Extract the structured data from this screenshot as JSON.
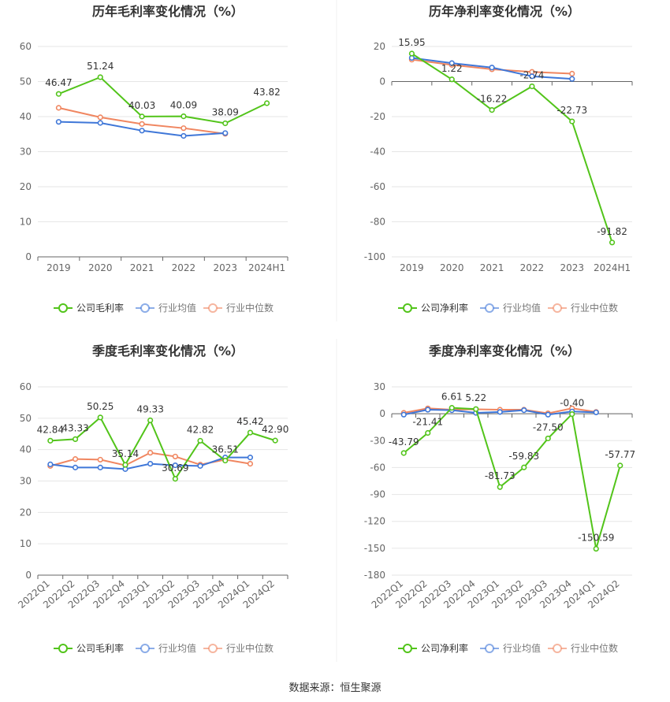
{
  "source_note": "数据来源：恒生聚源",
  "colors": {
    "company": "#52c41a",
    "avg": "#3f77d8",
    "median": "#f08660",
    "grid": "#e6e6e6",
    "axis": "#666666",
    "label": "#333333",
    "title": "#333333"
  },
  "chart_data": [
    {
      "type": "line",
      "title": "历年毛利率变化情况（%）",
      "categories": [
        "2019",
        "2020",
        "2021",
        "2022",
        "2023",
        "2024H1"
      ],
      "ylim": [
        0,
        60
      ],
      "yticks": [
        0,
        10,
        20,
        30,
        40,
        50,
        60
      ],
      "grid": true,
      "legend_position": "bottom",
      "series": [
        {
          "name": "公司毛利率",
          "values": [
            46.47,
            51.24,
            40.03,
            40.09,
            38.09,
            43.82
          ],
          "labels": [
            "46.47",
            "51.24",
            "40.03",
            "40.09",
            "38.09",
            "43.82"
          ]
        },
        {
          "name": "行业均值",
          "values": [
            38.5,
            38.2,
            36.0,
            34.5,
            35.3,
            null
          ]
        },
        {
          "name": "行业中位数",
          "values": [
            42.5,
            39.8,
            37.9,
            36.7,
            35.1,
            null
          ]
        }
      ]
    },
    {
      "type": "line",
      "title": "历年净利率变化情况（%）",
      "categories": [
        "2019",
        "2020",
        "2021",
        "2022",
        "2023",
        "2024H1"
      ],
      "ylim": [
        -100,
        20
      ],
      "yticks": [
        -100,
        -80,
        -60,
        -40,
        -20,
        0,
        20
      ],
      "grid": true,
      "legend_position": "bottom",
      "series": [
        {
          "name": "公司净利率",
          "values": [
            15.95,
            1.22,
            -16.22,
            -2.74,
            -22.73,
            -91.82
          ],
          "labels": [
            "15.95",
            "1.22",
            "-16.22",
            "-2.74",
            "-22.73",
            "-91.82"
          ]
        },
        {
          "name": "行业均值",
          "values": [
            13.5,
            10.5,
            8.0,
            3.0,
            1.5,
            null
          ]
        },
        {
          "name": "行业中位数",
          "values": [
            12.5,
            9.5,
            7.0,
            5.5,
            4.5,
            null
          ]
        }
      ]
    },
    {
      "type": "line",
      "title": "季度毛利率变化情况（%）",
      "categories": [
        "2022Q1",
        "2022Q2",
        "2022Q3",
        "2022Q4",
        "2023Q1",
        "2023Q2",
        "2023Q3",
        "2023Q4",
        "2024Q1",
        "2024Q2"
      ],
      "ylim": [
        0,
        60
      ],
      "yticks": [
        0,
        10,
        20,
        30,
        40,
        50,
        60
      ],
      "grid": true,
      "legend_position": "bottom",
      "series": [
        {
          "name": "公司毛利率",
          "values": [
            42.84,
            43.33,
            50.25,
            35.14,
            49.33,
            30.69,
            42.82,
            36.51,
            45.42,
            42.9
          ],
          "labels": [
            "42.84",
            "43.33",
            "50.25",
            "35.14",
            "49.33",
            "30.69",
            "42.82",
            "36.51",
            "45.42",
            "42.90"
          ]
        },
        {
          "name": "行业均值",
          "values": [
            35.3,
            34.3,
            34.3,
            33.8,
            35.5,
            35.0,
            34.8,
            37.5,
            37.5,
            null
          ]
        },
        {
          "name": "行业中位数",
          "values": [
            34.8,
            37.0,
            36.8,
            35.0,
            39.0,
            37.8,
            35.2,
            36.8,
            35.5,
            null
          ]
        }
      ]
    },
    {
      "type": "line",
      "title": "季度净利率变化情况（%）",
      "categories": [
        "2022Q1",
        "2022Q2",
        "2022Q3",
        "2022Q4",
        "2023Q1",
        "2023Q2",
        "2023Q3",
        "2023Q4",
        "2024Q1",
        "2024Q2"
      ],
      "ylim": [
        -180,
        30
      ],
      "yticks": [
        -180,
        -150,
        -120,
        -90,
        -60,
        -30,
        0,
        30
      ],
      "grid": true,
      "legend_position": "bottom",
      "series": [
        {
          "name": "公司净利率",
          "values": [
            -43.79,
            -21.41,
            6.61,
            5.22,
            -81.73,
            -59.83,
            -27.5,
            -0.4,
            -150.59,
            -57.77
          ],
          "labels": [
            "-43.79",
            "-21.41",
            "6.61",
            "5.22",
            "-81.73",
            "-59.83",
            "-27.50",
            "-0.40",
            "-150.59",
            "-57.77"
          ]
        },
        {
          "name": "行业均值",
          "values": [
            -1.0,
            4.5,
            4.0,
            1.0,
            2.0,
            4.0,
            -1.0,
            2.5,
            1.5,
            null
          ]
        },
        {
          "name": "行业中位数",
          "values": [
            1.0,
            6.0,
            4.5,
            5.0,
            4.5,
            4.5,
            0.5,
            6.0,
            2.0,
            null
          ]
        }
      ]
    }
  ]
}
